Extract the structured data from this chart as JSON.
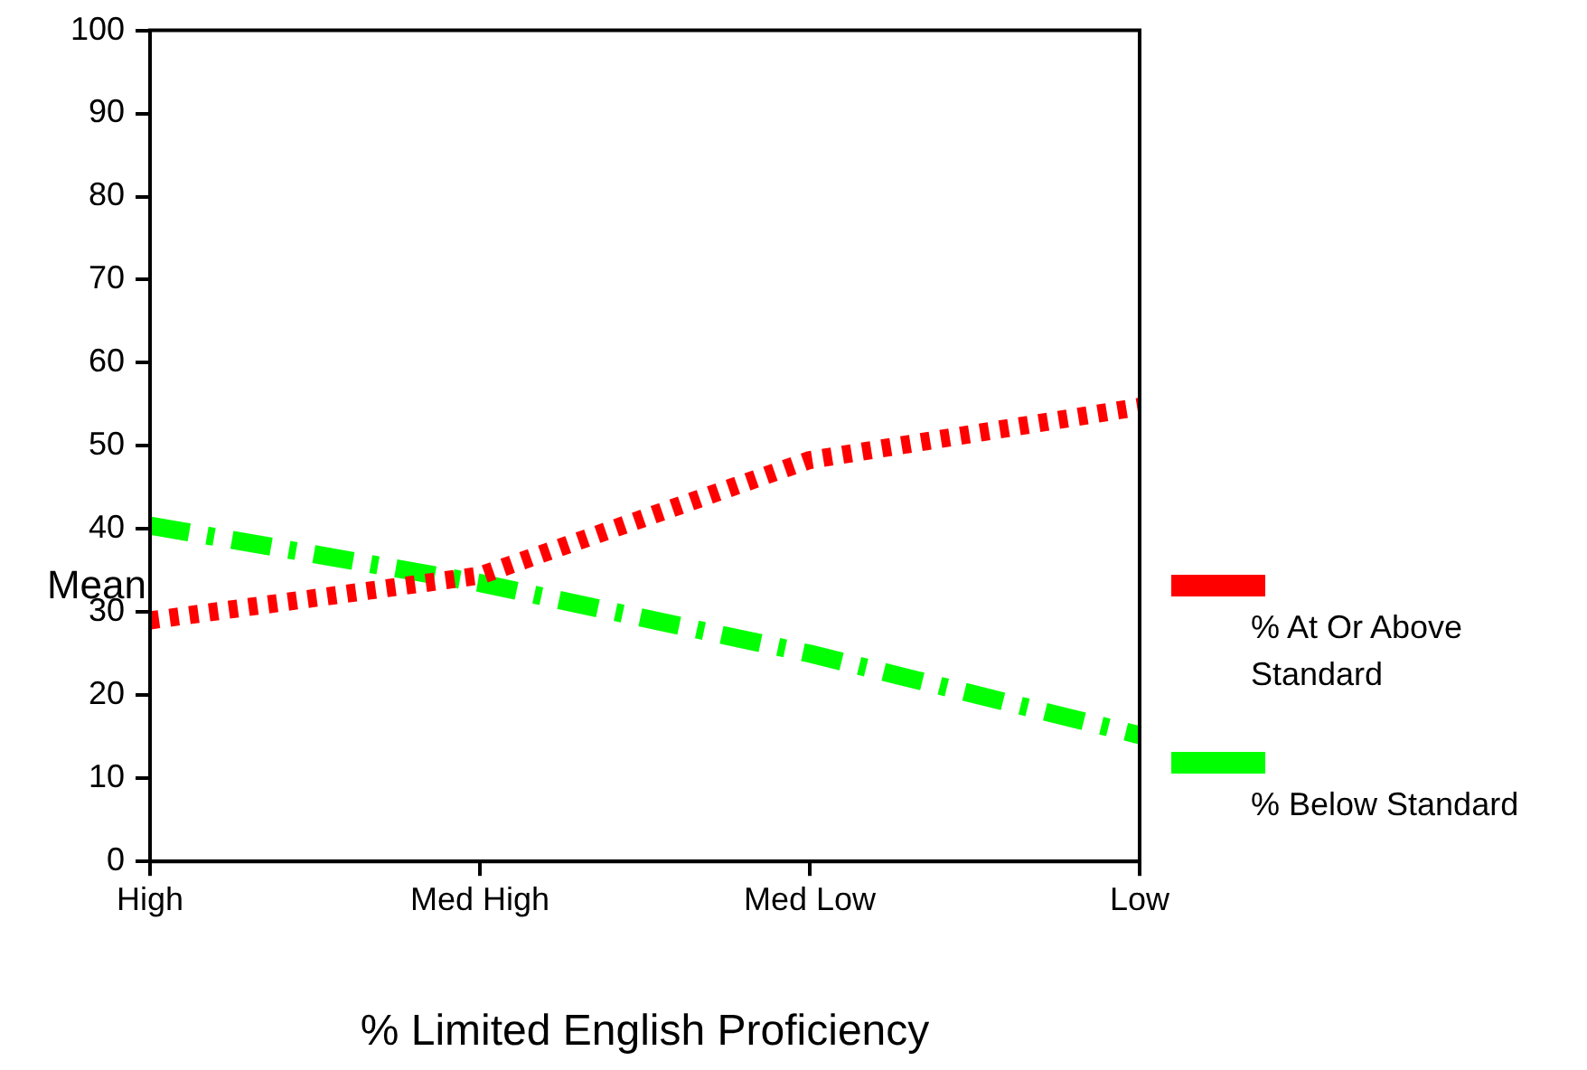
{
  "chart_data": {
    "type": "line",
    "xlabel": "% Limited English Proficiency",
    "ylabel": "Mean",
    "categories": [
      "High",
      "Med High",
      "Med Low",
      "Low"
    ],
    "series": [
      {
        "name": "% At Or Above Standard",
        "color": "#ff0000",
        "line_style": "dotted",
        "values": [
          29,
          34.4,
          48.3,
          54.7
        ]
      },
      {
        "name": "% Below Standard",
        "color": "#00ff00",
        "line_style": "dashed",
        "values": [
          40.4,
          33.5,
          25,
          15.2
        ]
      }
    ],
    "ylim": [
      0,
      100
    ],
    "yticks": [
      0,
      10,
      20,
      30,
      40,
      50,
      60,
      70,
      80,
      90,
      100
    ],
    "grid": false,
    "legend": "right",
    "marker": "none"
  }
}
